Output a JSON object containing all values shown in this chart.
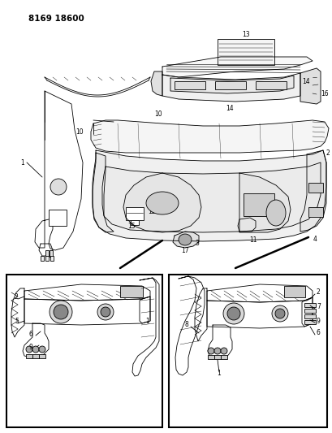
{
  "title": "8169 18600",
  "bg": "#ffffff",
  "lc": "#000000",
  "figsize": [
    4.1,
    5.33
  ],
  "dpi": 100,
  "fs": 5.5,
  "lw": 0.6
}
